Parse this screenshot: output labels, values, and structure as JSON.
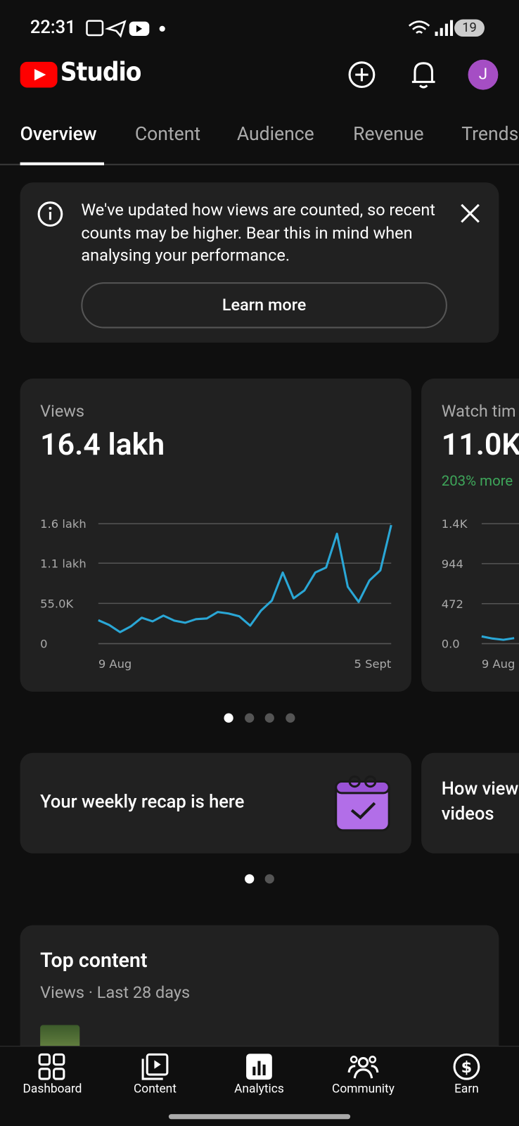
{
  "status_bar": {
    "time": "22:31",
    "battery": "19"
  },
  "header": {
    "logo": "Studio",
    "avatar": "J"
  },
  "tabs": [
    "Overview",
    "Content",
    "Audience",
    "Revenue",
    "Trends"
  ],
  "notice": {
    "text": "We've updated how views are counted, so recent counts may be higher. Bear this in mind when analysing your performance.",
    "button": "Learn more"
  },
  "metric_cards": [
    {
      "label": "Views",
      "value": "16.4 lakh",
      "chart_data": {
        "type": "line",
        "color": "#2aa7d6",
        "categories": [
          "9 Aug",
          null,
          null,
          null,
          null,
          null,
          null,
          null,
          null,
          null,
          null,
          null,
          null,
          null,
          null,
          null,
          null,
          null,
          null,
          null,
          null,
          null,
          null,
          null,
          null,
          null,
          null,
          "5 Sept"
        ],
        "values": [
          32000,
          25500,
          15700,
          23600,
          35400,
          30400,
          38300,
          31400,
          28500,
          33400,
          34400,
          43200,
          41200,
          37300,
          24600,
          45200,
          58900,
          97200,
          61900,
          72700,
          97200,
          104100,
          150200,
          77600,
          57000,
          86400,
          100200,
          162000
        ],
        "ylim": [
          0,
          164000
        ],
        "yticks": [
          {
            "value": 0,
            "label": "0"
          },
          {
            "value": 55000,
            "label": "55.0K"
          },
          {
            "value": 110000,
            "label": "1.1 lakh"
          },
          {
            "value": 164000,
            "label": "1.6 lakh"
          }
        ],
        "grid": true
      }
    },
    {
      "label": "Watch tim",
      "value": "11.0K",
      "change": "203% more",
      "chart_data": {
        "type": "line",
        "color": "#2aa7d6",
        "categories": [
          "9 Aug",
          null,
          null,
          null
        ],
        "values": [
          85,
          60,
          45,
          65
        ],
        "ylim": [
          0,
          1416
        ],
        "yticks": [
          {
            "value": 0,
            "label": "0.0"
          },
          472,
          944,
          {
            "value": 1416,
            "label": "1.4K"
          }
        ],
        "grid": true
      }
    }
  ],
  "recap_cards": [
    {
      "lines": [
        "Your weekly recap is here"
      ]
    },
    {
      "lines": [
        "How view",
        "videos"
      ]
    }
  ],
  "top_content": {
    "title": "Top content",
    "subtitle": "Views · Last 28 days"
  },
  "bottom_nav": [
    "Dashboard",
    "Content",
    "Analytics",
    "Community",
    "Earn"
  ]
}
